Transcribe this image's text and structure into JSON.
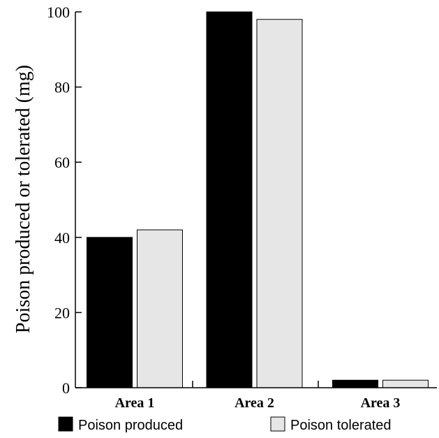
{
  "chart_data": {
    "type": "bar",
    "categories": [
      "Area 1",
      "Area 2",
      "Area 3"
    ],
    "series": [
      {
        "name": "Poison produced",
        "values": [
          40,
          100,
          2
        ],
        "color": "#000000"
      },
      {
        "name": "Poison tolerated",
        "values": [
          42,
          98,
          2
        ],
        "color": "#e6e6e6"
      }
    ],
    "title": "",
    "xlabel": "",
    "ylabel": "Poison produced or tolerated (mg)",
    "ylim": [
      0,
      100
    ],
    "yticks": [
      0,
      20,
      40,
      60,
      80,
      100
    ],
    "grid": false,
    "legend_position": "bottom"
  }
}
